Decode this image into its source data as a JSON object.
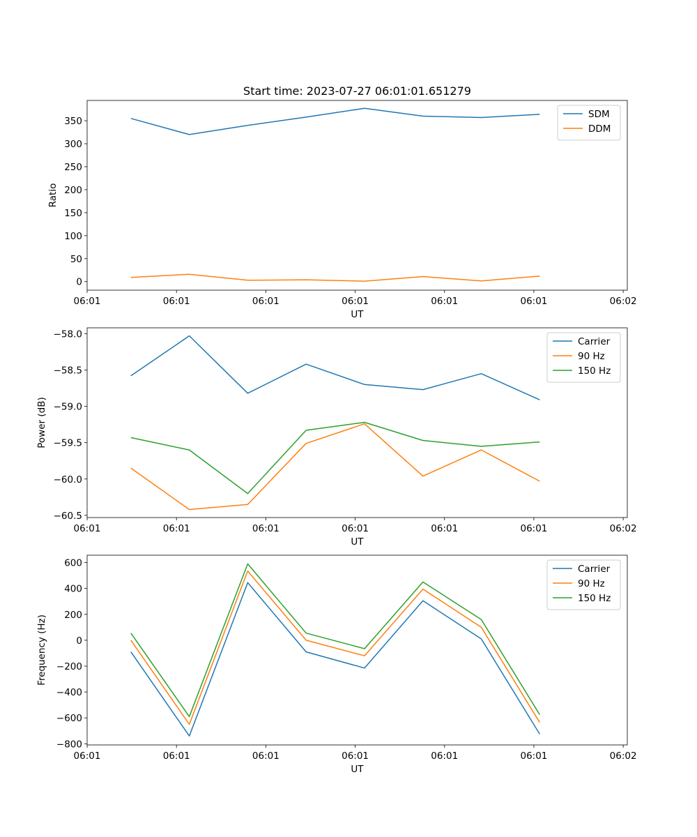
{
  "chart_data": [
    {
      "type": "line",
      "title": "Start time: 2023-07-27 06:01:01.651279",
      "xlabel": "UT",
      "ylabel": "Ratio",
      "x": [
        1,
        2,
        3,
        4,
        5,
        6,
        7,
        8
      ],
      "xlim": [
        0.25,
        9.5
      ],
      "ylim": [
        -18.6,
        394.2
      ],
      "xticks": [
        0.25,
        1.78,
        3.31,
        4.84,
        6.37,
        7.9,
        9.43
      ],
      "xtick_labels": [
        "06:01",
        "06:01",
        "06:01",
        "06:01",
        "06:01",
        "06:01",
        "06:02"
      ],
      "yticks": [
        0,
        50,
        100,
        150,
        200,
        250,
        300,
        350
      ],
      "ytick_labels": [
        "0",
        "50",
        "100",
        "150",
        "200",
        "250",
        "300",
        "350"
      ],
      "legend_position": "top-right",
      "series": [
        {
          "name": "SDM",
          "color": "#1f77b4",
          "values": [
            355,
            320,
            340,
            358,
            377,
            360,
            357,
            364
          ]
        },
        {
          "name": "DDM",
          "color": "#ff7f0e",
          "values": [
            9,
            16,
            3,
            4,
            1,
            11,
            1.5,
            12
          ]
        }
      ]
    },
    {
      "type": "line",
      "title": "",
      "xlabel": "UT",
      "ylabel": "Power (dB)",
      "x": [
        1,
        2,
        3,
        4,
        5,
        6,
        7,
        8
      ],
      "xlim": [
        0.25,
        9.5
      ],
      "ylim": [
        -60.53,
        -57.92
      ],
      "xticks": [
        0.25,
        1.78,
        3.31,
        4.84,
        6.37,
        7.9,
        9.43
      ],
      "xtick_labels": [
        "06:01",
        "06:01",
        "06:01",
        "06:01",
        "06:01",
        "06:01",
        "06:02"
      ],
      "yticks": [
        -60.5,
        -60.0,
        -59.5,
        -59.0,
        -58.5,
        -58.0
      ],
      "ytick_labels": [
        "−60.5",
        "−60.0",
        "−59.5",
        "−59.0",
        "−58.5",
        "−58.0"
      ],
      "legend_position": "top-right",
      "series": [
        {
          "name": "Carrier",
          "color": "#1f77b4",
          "values": [
            -58.58,
            -58.03,
            -58.82,
            -58.42,
            -58.7,
            -58.77,
            -58.55,
            -58.91
          ]
        },
        {
          "name": "90 Hz",
          "color": "#ff7f0e",
          "values": [
            -59.85,
            -60.42,
            -60.35,
            -59.51,
            -59.24,
            -59.96,
            -59.6,
            -60.03
          ]
        },
        {
          "name": "150 Hz",
          "color": "#2ca02c",
          "values": [
            -59.43,
            -59.6,
            -60.2,
            -59.33,
            -59.22,
            -59.47,
            -59.55,
            -59.49
          ]
        }
      ]
    },
    {
      "type": "line",
      "title": "",
      "xlabel": "UT",
      "ylabel": "Frequency (Hz)",
      "x": [
        1,
        2,
        3,
        4,
        5,
        6,
        7,
        8
      ],
      "xlim": [
        0.25,
        9.5
      ],
      "ylim": [
        -809,
        657
      ],
      "xticks": [
        0.25,
        1.78,
        3.31,
        4.84,
        6.37,
        7.9,
        9.43
      ],
      "xtick_labels": [
        "06:01",
        "06:01",
        "06:01",
        "06:01",
        "06:01",
        "06:01",
        "06:02"
      ],
      "yticks": [
        -800,
        -600,
        -400,
        -200,
        0,
        200,
        400,
        600
      ],
      "ytick_labels": [
        "−800",
        "−600",
        "−400",
        "−200",
        "0",
        "200",
        "400",
        "600"
      ],
      "legend_position": "top-right",
      "series": [
        {
          "name": "Carrier",
          "color": "#1f77b4",
          "values": [
            -90,
            -740,
            445,
            -90,
            -215,
            305,
            10,
            -725
          ]
        },
        {
          "name": "90 Hz",
          "color": "#ff7f0e",
          "values": [
            0,
            -650,
            535,
            0,
            -120,
            395,
            100,
            -635
          ]
        },
        {
          "name": "150 Hz",
          "color": "#2ca02c",
          "values": [
            55,
            -590,
            590,
            55,
            -65,
            450,
            160,
            -575
          ]
        }
      ]
    }
  ]
}
